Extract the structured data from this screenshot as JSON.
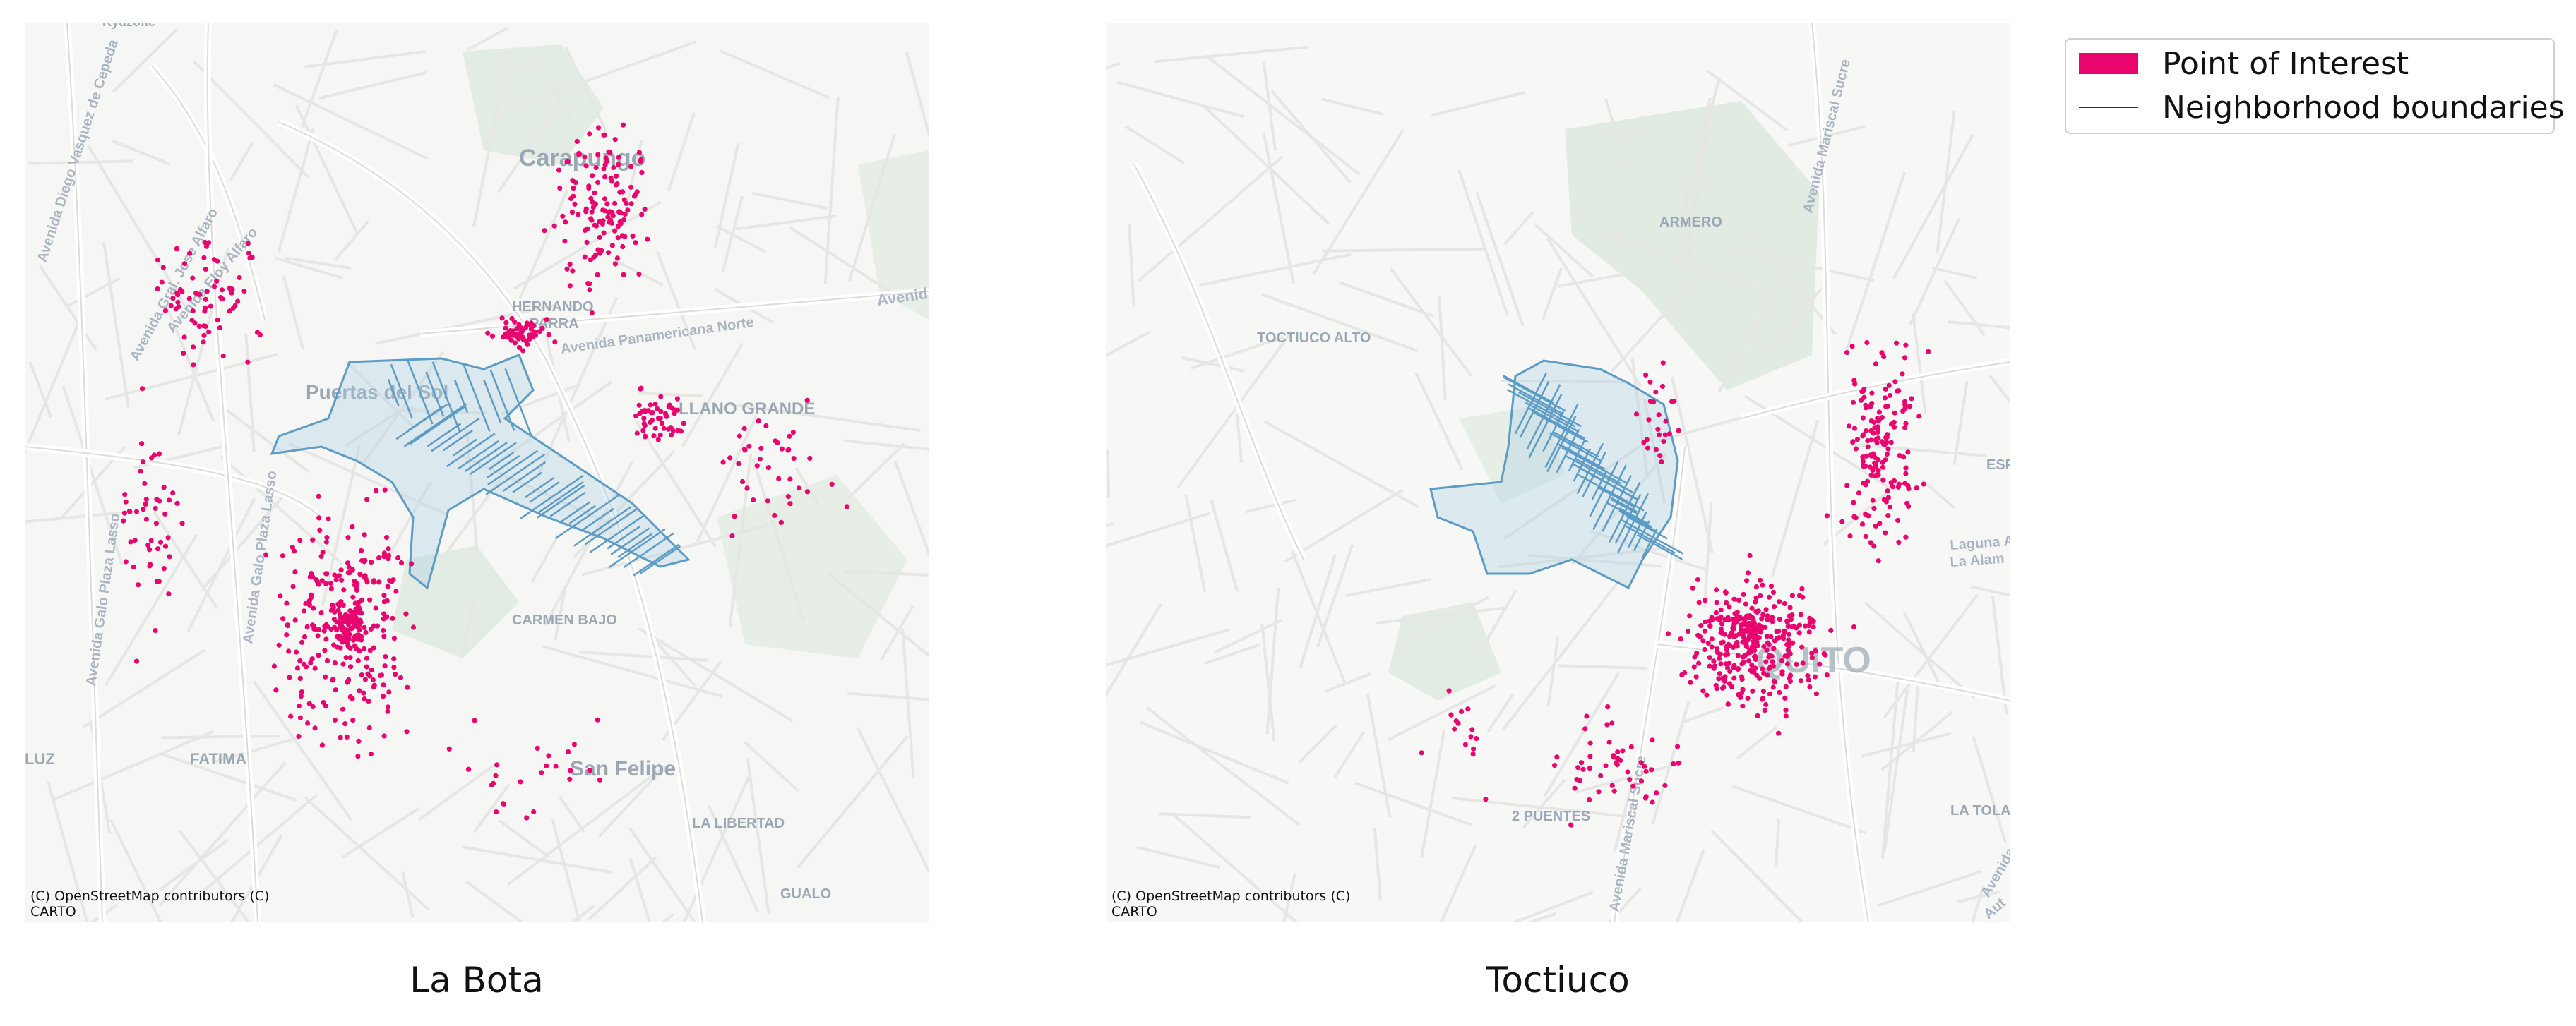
{
  "legend": {
    "poi_label": "Point of Interest",
    "boundary_label": "Neighborhood boundaries",
    "poi_color": "#e8056e",
    "boundary_color": "#333333"
  },
  "panels": [
    {
      "title": "La Bota",
      "attribution_line1": "(C) OpenStreetMap contributors (C)",
      "attribution_line2": "CARTO",
      "place_labels": [
        "Carapungo",
        "HERNANDO",
        "PARRA",
        "Puertas del Sol",
        "LLANO GRANDE",
        "CARMEN BAJO",
        "San Felipe",
        "FATIMA",
        "LA LIBERTAD",
        "GUALO",
        "LUZ",
        "Rydzofle"
      ],
      "road_labels": [
        "Avenida Diego Vasquez de Cepeda",
        "Avenida Galo Plaza Lasso",
        "Avenida Panamericana Norte",
        "Avenida Eloy Alfaro",
        "Avenida Galo Plaza Lasso",
        "Avenida",
        "Avenida Gral. Jose Alfaro"
      ]
    },
    {
      "title": "Toctiuco",
      "attribution_line1": "(C) OpenStreetMap contributors (C)",
      "attribution_line2": "CARTO",
      "place_labels": [
        "TOCTIUCO ALTO",
        "ARMERO",
        "QUITO",
        "2 PUENTES",
        "LA TOLA",
        "ESP"
      ],
      "road_labels": [
        "Avenida Mariscal Sucre",
        "Avenida Mariscal Sucre",
        "Laguna Al",
        "La Alam",
        "Avenida",
        "Aut"
      ]
    }
  ],
  "colors": {
    "poi": "#e8056e",
    "neighborhood_fill": "#7fb3d5",
    "neighborhood_stroke": "#5d9cc4",
    "basemap": "#f6f6f4",
    "roads": "#e4e4e2",
    "green": "#dfe9df"
  }
}
